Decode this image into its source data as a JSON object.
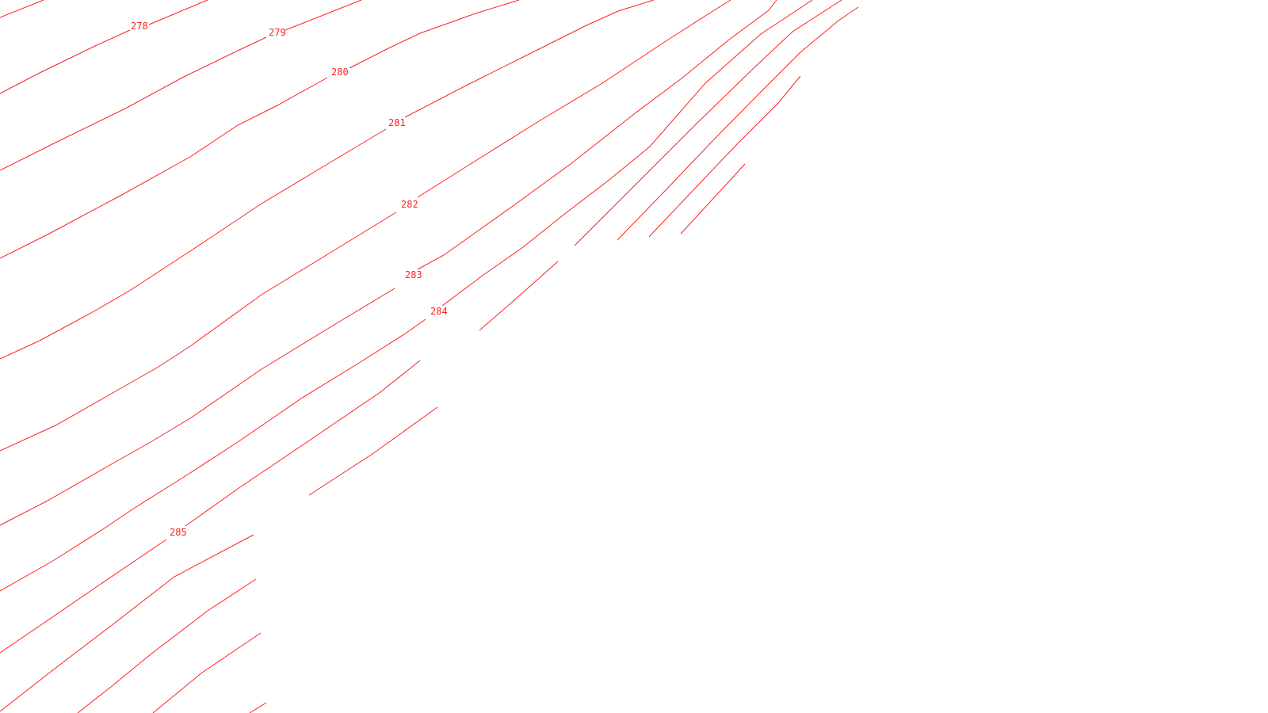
{
  "map": {
    "type": "contour-map",
    "line_color": "#ff2020",
    "background_color": "#ffffff",
    "contour_labels": [
      "278",
      "279",
      "280",
      "281",
      "282",
      "283",
      "284",
      "285"
    ]
  }
}
